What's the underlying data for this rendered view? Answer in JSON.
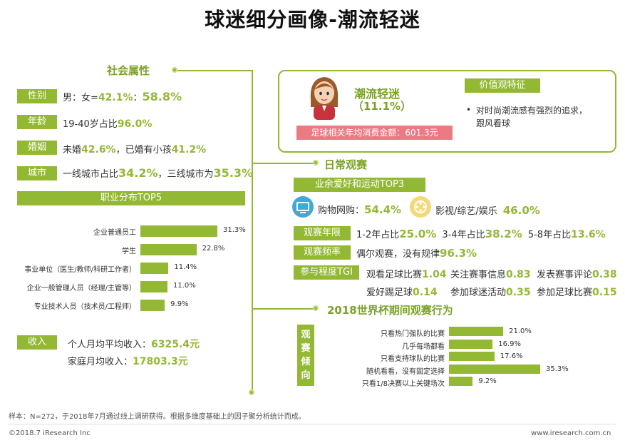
{
  "title": "球迷细分画像-潮流轻迷",
  "social": {
    "heading": "社会属性",
    "gender": {
      "tag": "性别",
      "text": "男：女=",
      "male": "42.1%",
      "sep": "：",
      "female": "58.8%"
    },
    "age": {
      "tag": "年龄",
      "text": "19-40岁占比",
      "value": "96.0%"
    },
    "marriage": {
      "tag": "婚姻",
      "text1": "未婚",
      "v1": "42.6%",
      "text2": "，已婚有小孩",
      "v2": "41.2%"
    },
    "city": {
      "tag": "城市",
      "text1": "一线城市占比",
      "v1": "34.2%",
      "text2": "，三线城市为",
      "v2": "35.3%"
    }
  },
  "occupation": {
    "heading": "职业分布TOP5",
    "chart_data": {
      "type": "bar",
      "orientation": "horizontal",
      "categories": [
        "企业普通员工",
        "学生",
        "事业单位（医生/教师/科研工作者）",
        "企业一般管理人员（经理/主管等）",
        "专业技术人员（技术员/工程师）"
      ],
      "values": [
        31.3,
        22.8,
        11.4,
        11.0,
        9.9
      ],
      "value_labels": [
        "31.3%",
        "22.8%",
        "11.4%",
        "11.0%",
        "9.9%"
      ],
      "unit": "%"
    }
  },
  "income": {
    "tag": "收入",
    "personal_label": "个人月均平均收入：",
    "personal_value": "6325.4元",
    "family_label": "家庭月均收入：",
    "family_value": "17803.3元"
  },
  "profile": {
    "name": "潮流轻迷",
    "share": "（11.1%）",
    "spend": "足球相关年均消费金额：601.3元",
    "values_heading": "价值观特征",
    "values_text1": "对时尚潮流感有强烈的追求，",
    "values_text2": "跟风看球"
  },
  "daily": {
    "heading": "日常观赛",
    "hobby_tag": "业余爱好和运动TOP3",
    "hobby1_label": "购物网购：",
    "hobby1_value": "54.4%",
    "hobby2_label": "影视/综艺/娱乐",
    "hobby2_value": "46.0%",
    "years_tag": "观赛年限",
    "y1_label": "1-2年占比",
    "y1_value": "25.0%",
    "y2_label": "3-4年占比",
    "y2_value": "38.2%",
    "y3_label": "5-8年占比",
    "y3_value": "13.6%",
    "freq_tag": "观赛频率",
    "freq_label": "偶尔观赛，没有规律",
    "freq_value": "96.3%",
    "tgi_tag": "参与程度TGI",
    "tgi": [
      {
        "label": "观看足球比赛",
        "value": "1.04"
      },
      {
        "label": "关注赛事信息",
        "value": "0.83"
      },
      {
        "label": "发表赛事评论",
        "value": "0.38"
      },
      {
        "label": "爱好踢足球",
        "value": "0.14"
      },
      {
        "label": "参加球迷活动",
        "value": "0.35"
      },
      {
        "label": "参加足球比赛",
        "value": "0.15"
      }
    ]
  },
  "worldcup": {
    "heading": "2018世界杯期间观赛行为",
    "side_tag": "观赛倾向",
    "chart_data": {
      "type": "bar",
      "orientation": "horizontal",
      "categories": [
        "只看热门强队的比赛",
        "几乎每场都看",
        "只看支持球队的比赛",
        "随机看看，没有固定选择",
        "只看1/8决赛以上关键场次"
      ],
      "values": [
        21.0,
        16.9,
        17.6,
        35.3,
        9.2
      ],
      "value_labels": [
        "21.0%",
        "16.9%",
        "17.6%",
        "35.3%",
        "9.2%"
      ],
      "unit": "%"
    }
  },
  "footer": {
    "note": "样本：N=272，于2018年7月通过线上调研获得。根据多维度基础上的因子聚分析统计而成。",
    "copyright": "©2018.7 iResearch Inc",
    "site": "www.iresearch.com.cn"
  },
  "colors": {
    "accent": "#93b833",
    "pink": "#ec7a83"
  }
}
